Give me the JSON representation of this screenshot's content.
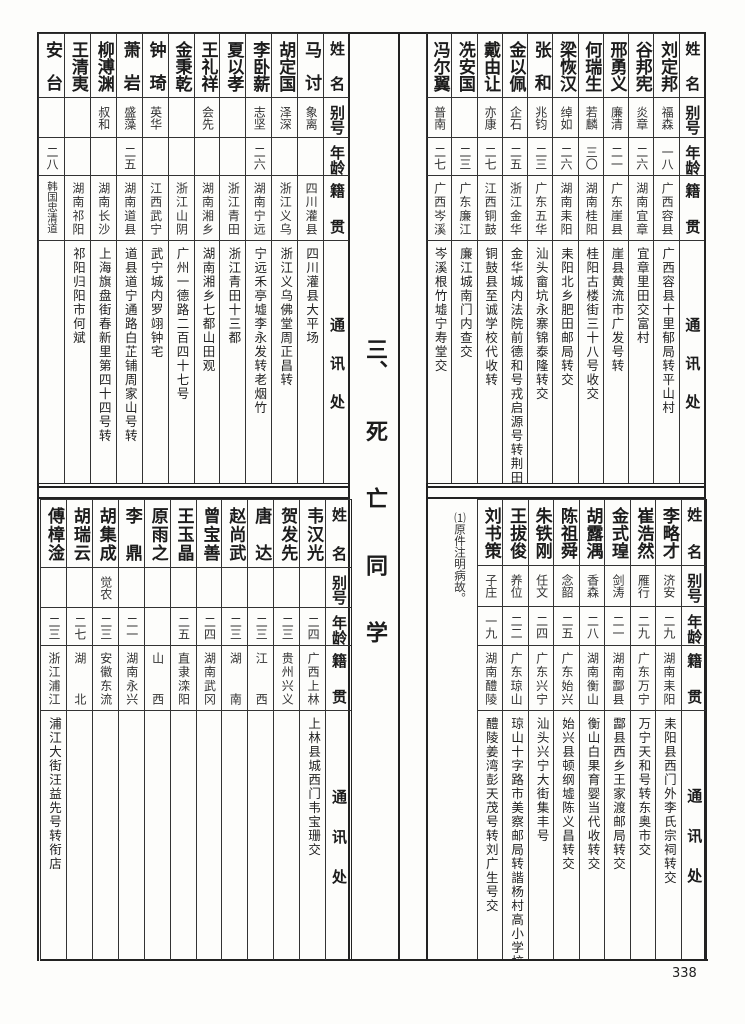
{
  "headers": {
    "name": "姓名",
    "alias": "别号",
    "age": "年龄",
    "origin": "籍贯",
    "address": "通讯处"
  },
  "section_heading": {
    "number": "三、",
    "title": "死亡同学"
  },
  "footnote": "⑴原件注明病故。",
  "page_number": "338",
  "tables": [
    {
      "rows": [
        {
          "name": "刘定邦",
          "alias": "福森",
          "age": "一八",
          "origin": "广西容县",
          "address": "广西容县十里郁局转平山村"
        },
        {
          "name": "谷邦宪",
          "alias": "炎章",
          "age": "二六",
          "origin": "湖南宜章",
          "address": "宜章里田交富村"
        },
        {
          "name": "邢勇义",
          "alias": "廉清",
          "age": "二一",
          "origin": "广东崖县",
          "address": "崖县黄流市广发号转"
        },
        {
          "name": "何瑞生",
          "alias": "若麟",
          "age": "三〇",
          "origin": "湖南桂阳",
          "address": "桂阳古楼街三十八号收交"
        },
        {
          "name": "梁恢汉",
          "alias": "绰如",
          "age": "二六",
          "origin": "湖南耒阳",
          "address": "耒阳北乡肥田邮局转交"
        },
        {
          "name": "张和",
          "alias": "兆钧",
          "age": "二三",
          "origin": "广东五华",
          "address": "汕头畲坑永寨锦泰隆转交"
        },
        {
          "name": "金以佩",
          "alias": "企石",
          "age": "二五",
          "origin": "浙江金华",
          "address": "金华城内法院前德和号戎启源号转荆田交"
        },
        {
          "name": "戴由让",
          "alias": "亦康",
          "age": "二七",
          "origin": "江西铜鼓",
          "address": "铜鼓县至诚学校代收转"
        },
        {
          "name": "冼安国",
          "alias": "",
          "age": "二三",
          "origin": "广东廉江",
          "address": "廉江城南门内查交"
        },
        {
          "name": "冯尔翼",
          "alias": "普南",
          "age": "二七",
          "origin": "广西岑溪",
          "address": "岑溪根竹墟宁寿堂交"
        }
      ]
    },
    {
      "rows": [
        {
          "name": "马讨",
          "alias": "象离",
          "age": "",
          "origin": "四川灌县",
          "address": "四川灌县大平场"
        },
        {
          "name": "胡定国",
          "alias": "泽深",
          "age": "",
          "origin": "浙江义乌",
          "address": "浙江义乌佛堂周正昌转"
        },
        {
          "name": "李卧薪",
          "alias": "志坚",
          "age": "二六",
          "origin": "湖南宁远",
          "address": "宁远禾亭墟李永发转老烟竹"
        },
        {
          "name": "夏以孝",
          "alias": "",
          "age": "",
          "origin": "浙江青田",
          "address": "浙江青田十三都"
        },
        {
          "name": "王礼祥",
          "alias": "会先",
          "age": "",
          "origin": "湖南湘乡",
          "address": "湖南湘乡七都山田观"
        },
        {
          "name": "金秉乾",
          "alias": "",
          "age": "",
          "origin": "浙江山阴",
          "address": "广州一德路二百四十七号"
        },
        {
          "name": "钟琦",
          "alias": "英华",
          "age": "",
          "origin": "江西武宁",
          "address": "武宁城内罗翊钟宅"
        },
        {
          "name": "萧岩",
          "alias": "盛藻",
          "age": "二五",
          "origin": "湖南道县",
          "address": "道县道宁通路白芷铺周家山号转"
        },
        {
          "name": "柳溥渊",
          "alias": "叔和",
          "age": "",
          "origin": "湖南长沙",
          "address": "上海旗盘街春新里第四十四号转"
        },
        {
          "name": "王清夷",
          "alias": "",
          "age": "",
          "origin": "湖南祁阳",
          "address": "祁阳归阳市何斌"
        },
        {
          "name": "安台",
          "alias": "",
          "age": "二八",
          "origin": "韩国忠清道",
          "address": ""
        }
      ]
    },
    {
      "rows": [
        {
          "name": "李略才",
          "alias": "济安",
          "age": "二九",
          "origin": "湖南耒阳",
          "address": "耒阳县西门外李氏宗祠转交"
        },
        {
          "name": "崔浩然",
          "alias": "雁行",
          "age": "二九",
          "origin": "广东万宁",
          "address": "万宁天和号转东奥市交"
        },
        {
          "name": "金式瑝",
          "alias": "剑涛",
          "age": "二一",
          "origin": "湖南酃县",
          "address": "酃县西乡王家渡邮局转交"
        },
        {
          "name": "胡露湡",
          "alias": "香森",
          "age": "二八",
          "origin": "湖南衡山",
          "address": "衡山白果育婴当代收转交"
        },
        {
          "name": "陈祖舜",
          "alias": "念韶",
          "age": "二五",
          "origin": "广东始兴",
          "address": "始兴县顿纲墟陈义昌转交"
        },
        {
          "name": "朱铁刚",
          "alias": "任文",
          "age": "二四",
          "origin": "广东兴宁",
          "address": "汕头兴宁大街集丰号"
        },
        {
          "name": "王拔俊",
          "alias": "养位",
          "age": "二二",
          "origin": "广东琼山",
          "address": "琼山十字路市美察邮局转諧杨村高小学校交"
        },
        {
          "name": "刘书策",
          "alias": "子庄",
          "age": "一九",
          "origin": "湖南醴陵",
          "address": "醴陵姜湾彭天茂号转刘广生号交"
        }
      ]
    },
    {
      "rows": [
        {
          "name": "韦汉光",
          "alias": "",
          "age": "二四",
          "origin": "广西上林",
          "address": "上林县城西门韦宝珊交"
        },
        {
          "name": "贺发先",
          "alias": "",
          "age": "二三",
          "origin": "贵州兴义",
          "address": ""
        },
        {
          "name": "唐达",
          "alias": "",
          "age": "二三",
          "origin": "江西",
          "address": ""
        },
        {
          "name": "赵尚武",
          "alias": "",
          "age": "二三",
          "origin": "湖南",
          "address": ""
        },
        {
          "name": "曾宝善",
          "alias": "",
          "age": "二四",
          "origin": "湖南武冈",
          "address": ""
        },
        {
          "name": "王玉晶",
          "alias": "",
          "age": "二五",
          "origin": "直隶滦阳",
          "address": ""
        },
        {
          "name": "原雨之",
          "alias": "",
          "age": "",
          "origin": "山西",
          "address": ""
        },
        {
          "name": "李鼎",
          "alias": "",
          "age": "二一",
          "origin": "湖南永兴",
          "address": ""
        },
        {
          "name": "胡集成",
          "alias": "觉农",
          "age": "二三",
          "origin": "安徽东流",
          "address": ""
        },
        {
          "name": "胡瑞云",
          "alias": "",
          "age": "二七",
          "origin": "湖北",
          "address": ""
        },
        {
          "name": "傅樟淦",
          "alias": "",
          "age": "二三",
          "origin": "浙江浦江",
          "address": "浦江大街汪益先号转衔店"
        }
      ]
    }
  ]
}
